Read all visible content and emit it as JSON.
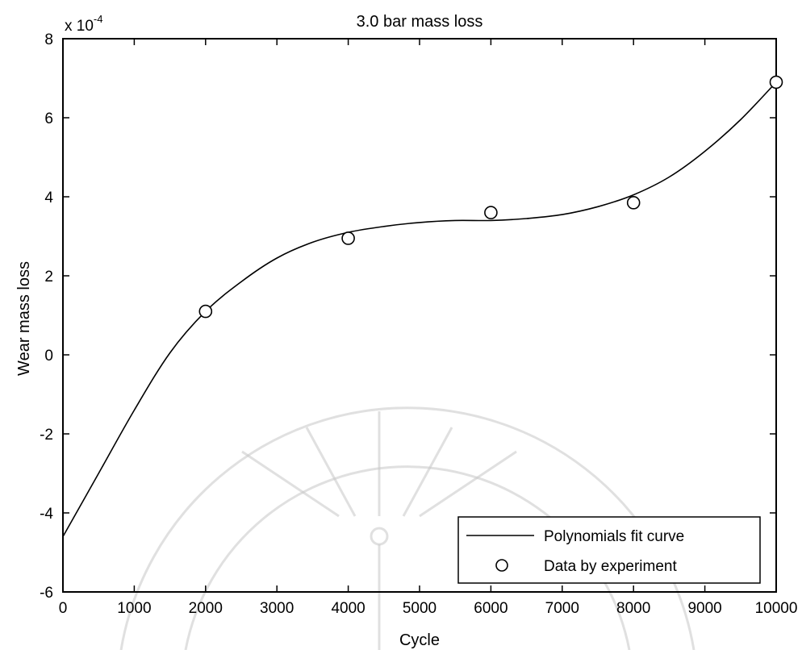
{
  "chart_data": {
    "type": "line",
    "title": "3.0 bar mass loss",
    "xlabel": "Cycle",
    "ylabel": "Wear mass loss",
    "y_multiplier": "x 10",
    "y_exponent": "-4",
    "xlim": [
      0,
      10000
    ],
    "ylim": [
      -6,
      8
    ],
    "x_ticks": [
      "0",
      "1000",
      "2000",
      "3000",
      "4000",
      "5000",
      "6000",
      "7000",
      "8000",
      "9000",
      "10000"
    ],
    "y_ticks": [
      "-6",
      "-4",
      "-2",
      "0",
      "2",
      "4",
      "6",
      "8"
    ],
    "grid": false,
    "legend_position": "bottom-right",
    "series": [
      {
        "name": "Polynomials fit curve",
        "style": "line",
        "x": [
          0,
          500,
          1000,
          1500,
          2000,
          2500,
          3000,
          3500,
          4000,
          4500,
          5000,
          5500,
          6000,
          6500,
          7000,
          7500,
          8000,
          8500,
          9000,
          9500,
          10000
        ],
        "y": [
          -4.6,
          -3.0,
          -1.4,
          0.05,
          1.1,
          1.85,
          2.45,
          2.85,
          3.1,
          3.25,
          3.35,
          3.4,
          3.4,
          3.45,
          3.55,
          3.75,
          4.05,
          4.5,
          5.15,
          5.95,
          6.9
        ]
      },
      {
        "name": "Data by experiment",
        "style": "marker-circle",
        "x": [
          2000,
          4000,
          6000,
          8000,
          10000
        ],
        "y": [
          1.1,
          2.95,
          3.6,
          3.85,
          6.9
        ]
      }
    ]
  }
}
